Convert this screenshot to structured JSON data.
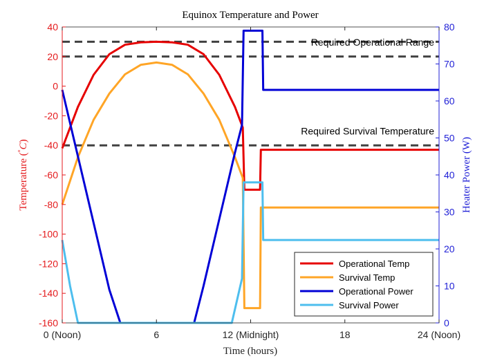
{
  "chart_data": {
    "type": "line",
    "title": "Equinox Temperature and Power",
    "xlabel": "Time (hours)",
    "ylabel_left": "Temperature (°C)",
    "ylabel_left_parts": [
      "Temperature (",
      "°",
      "C",
      ")"
    ],
    "ylabel_right": "Heater Power (W)",
    "xlim": [
      0,
      24
    ],
    "ylim_left": [
      -160,
      40
    ],
    "ylim_right": [
      0,
      80
    ],
    "x_ticks": [
      0,
      6,
      12,
      18,
      24
    ],
    "x_tick_labels": [
      "0 (Noon)",
      "6",
      "12 (Midnight)",
      "18",
      "24 (Noon)"
    ],
    "y_left_ticks": [
      40,
      20,
      0,
      -20,
      -40,
      -60,
      -80,
      -100,
      -120,
      -140,
      -160
    ],
    "y_right_ticks": [
      80,
      70,
      60,
      50,
      40,
      30,
      20,
      10,
      0
    ],
    "left_axis_color": "#e41a1c",
    "right_axis_color": "#1f1fd6",
    "grid": false,
    "legend_position": "bottom-right",
    "reference_lines": [
      {
        "y": 30,
        "axis": "left",
        "color": "#404040"
      },
      {
        "y": 20,
        "axis": "left",
        "color": "#404040"
      },
      {
        "y": -40,
        "axis": "left",
        "color": "#404040"
      }
    ],
    "annotations": [
      {
        "text": "Required Operational Range",
        "y": 26
      },
      {
        "text": "Required Survival Temperature",
        "y": -34
      }
    ],
    "series": [
      {
        "name": "Operational Temp",
        "axis": "left",
        "color": "#e60000",
        "x": [
          0,
          1,
          2,
          3,
          4,
          5,
          6,
          7,
          8,
          9,
          10,
          11,
          11.5,
          11.6,
          12.6,
          12.65,
          24
        ],
        "y": [
          -42,
          -14,
          7.7,
          21.6,
          28,
          29.6,
          30,
          29.6,
          28,
          21.6,
          7.7,
          -14,
          -28,
          -70,
          -70,
          -43,
          -43
        ]
      },
      {
        "name": "Survival Temp",
        "axis": "left",
        "color": "#ffa526",
        "x": [
          0,
          1,
          2,
          3,
          4,
          5,
          6,
          7,
          8,
          9,
          10,
          11,
          11.5,
          11.6,
          12.6,
          12.65,
          24
        ],
        "y": [
          -80,
          -48,
          -22.7,
          -5,
          8,
          14.4,
          16,
          14.4,
          8,
          -5,
          -22.7,
          -48,
          -62,
          -150,
          -150,
          -82,
          -82
        ]
      },
      {
        "name": "Operational Power",
        "axis": "right",
        "color": "#0000d6",
        "x": [
          0,
          1,
          2,
          3,
          3.7,
          8.4,
          9,
          10,
          11,
          11.45,
          11.55,
          12.75,
          12.8,
          24
        ],
        "y": [
          63,
          45,
          27,
          9,
          0,
          0,
          10,
          28,
          46,
          53.5,
          79,
          79,
          63,
          63
        ]
      },
      {
        "name": "Survival Power",
        "axis": "right",
        "color": "#4dbeee",
        "x": [
          0,
          0.5,
          1.0,
          10.8,
          11.45,
          11.55,
          12.75,
          12.8,
          24
        ],
        "y": [
          22.4,
          10,
          0,
          0,
          12,
          38,
          38,
          22.4,
          22.4
        ]
      }
    ]
  }
}
